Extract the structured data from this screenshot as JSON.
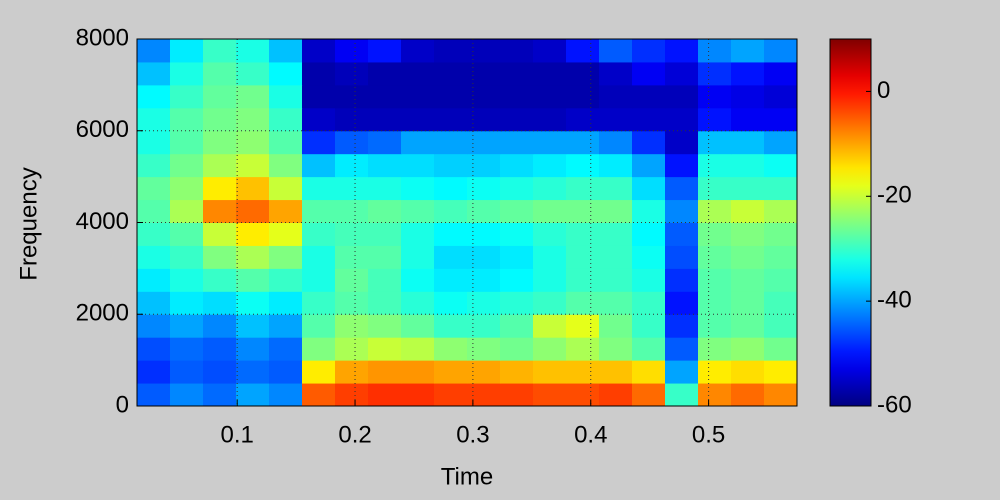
{
  "chart_data": {
    "type": "heatmap",
    "x_label": "Time",
    "y_label": "Frequency",
    "xlim": [
      0.015,
      0.575
    ],
    "xticks": [
      0.1,
      0.2,
      0.3,
      0.4,
      0.5
    ],
    "ylim": [
      0,
      8000
    ],
    "yticks": [
      0,
      2000,
      4000,
      6000,
      8000
    ],
    "grid": true,
    "colormap": "jet",
    "clim": [
      -60,
      10
    ],
    "cticks": [
      -60,
      -40,
      -20,
      0
    ],
    "x": [
      0.029,
      0.057,
      0.085,
      0.113,
      0.141,
      0.169,
      0.197,
      0.225,
      0.253,
      0.281,
      0.309,
      0.337,
      0.365,
      0.393,
      0.421,
      0.449,
      0.477,
      0.505,
      0.533,
      0.561
    ],
    "y": [
      250,
      750,
      1250,
      1750,
      2250,
      2750,
      3250,
      3750,
      4250,
      4750,
      5250,
      5750,
      6250,
      6750,
      7250,
      7750
    ],
    "z": [
      [
        -45,
        -42,
        -44,
        -40,
        -42,
        -5,
        -3,
        -2,
        -2,
        -3,
        -3,
        -3,
        -4,
        -4,
        -3,
        -6,
        -30,
        -8,
        -6,
        -8
      ],
      [
        -48,
        -45,
        -46,
        -44,
        -45,
        -15,
        -10,
        -9,
        -9,
        -10,
        -10,
        -11,
        -12,
        -12,
        -12,
        -14,
        -40,
        -15,
        -14,
        -15
      ],
      [
        -46,
        -44,
        -45,
        -42,
        -44,
        -25,
        -22,
        -20,
        -21,
        -24,
        -25,
        -26,
        -24,
        -22,
        -25,
        -28,
        -45,
        -25,
        -24,
        -26
      ],
      [
        -42,
        -40,
        -42,
        -38,
        -40,
        -28,
        -24,
        -25,
        -27,
        -30,
        -30,
        -28,
        -20,
        -18,
        -26,
        -30,
        -48,
        -28,
        -27,
        -29
      ],
      [
        -38,
        -35,
        -36,
        -33,
        -35,
        -30,
        -28,
        -29,
        -31,
        -33,
        -32,
        -31,
        -30,
        -28,
        -28,
        -30,
        -50,
        -28,
        -27,
        -29
      ],
      [
        -35,
        -32,
        -30,
        -28,
        -30,
        -32,
        -27,
        -29,
        -33,
        -35,
        -35,
        -34,
        -32,
        -30,
        -30,
        -32,
        -48,
        -28,
        -27,
        -28
      ],
      [
        -32,
        -30,
        -25,
        -22,
        -25,
        -32,
        -28,
        -28,
        -32,
        -36,
        -36,
        -35,
        -32,
        -30,
        -30,
        -33,
        -46,
        -27,
        -26,
        -27
      ],
      [
        -30,
        -28,
        -20,
        -15,
        -18,
        -30,
        -29,
        -29,
        -32,
        -34,
        -34,
        -33,
        -31,
        -30,
        -30,
        -34,
        -45,
        -26,
        -25,
        -26
      ],
      [
        -28,
        -22,
        -8,
        -6,
        -10,
        -28,
        -28,
        -27,
        -28,
        -29,
        -28,
        -27,
        -26,
        -26,
        -26,
        -32,
        -42,
        -22,
        -20,
        -22
      ],
      [
        -27,
        -24,
        -15,
        -12,
        -20,
        -32,
        -32,
        -32,
        -33,
        -34,
        -33,
        -32,
        -31,
        -30,
        -30,
        -36,
        -45,
        -30,
        -30,
        -30
      ],
      [
        -30,
        -26,
        -22,
        -20,
        -25,
        -38,
        -35,
        -36,
        -36,
        -37,
        -37,
        -36,
        -35,
        -34,
        -35,
        -40,
        -50,
        -32,
        -32,
        -33
      ],
      [
        -32,
        -28,
        -25,
        -24,
        -28,
        -48,
        -45,
        -44,
        -40,
        -40,
        -40,
        -40,
        -40,
        -40,
        -42,
        -48,
        -55,
        -38,
        -38,
        -40
      ],
      [
        -32,
        -28,
        -26,
        -25,
        -30,
        -55,
        -56,
        -56,
        -56,
        -56,
        -56,
        -56,
        -56,
        -55,
        -55,
        -55,
        -55,
        -50,
        -52,
        -52
      ],
      [
        -34,
        -30,
        -27,
        -26,
        -32,
        -57,
        -57,
        -57,
        -57,
        -57,
        -57,
        -57,
        -57,
        -57,
        -56,
        -56,
        -56,
        -52,
        -53,
        -54
      ],
      [
        -38,
        -32,
        -28,
        -30,
        -34,
        -57,
        -56,
        -57,
        -57,
        -57,
        -57,
        -57,
        -57,
        -57,
        -55,
        -52,
        -54,
        -48,
        -50,
        -52
      ],
      [
        -42,
        -35,
        -30,
        -32,
        -38,
        -55,
        -52,
        -50,
        -55,
        -56,
        -56,
        -56,
        -55,
        -50,
        -45,
        -48,
        -50,
        -42,
        -40,
        -42
      ]
    ]
  }
}
